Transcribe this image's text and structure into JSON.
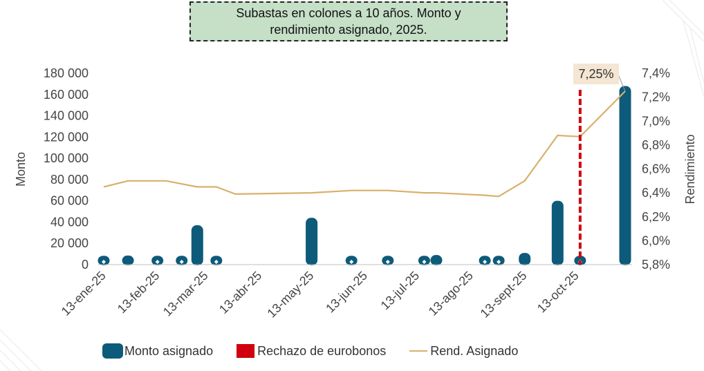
{
  "title": {
    "line1": "Subastas en colones a 10 años. Monto y",
    "line2": "rendimiento asignado, 2025."
  },
  "chart_data": {
    "type": "bar",
    "title": "Subastas en colones a 10 años. Monto y rendimiento asignado, 2025.",
    "ylabel": "Monto",
    "y2label": "Rendimiento",
    "ylim": [
      0,
      180000
    ],
    "y2lim": [
      5.8,
      7.4
    ],
    "yticks": [
      "0",
      "20 000",
      "40 000",
      "60 000",
      "80 000",
      "100 000",
      "120 000",
      "140 000",
      "160 000",
      "180 000"
    ],
    "y2ticks": [
      "5,8%",
      "6,0%",
      "6,2%",
      "6,4%",
      "6,6%",
      "6,8%",
      "7,0%",
      "7,2%",
      "7,4%"
    ],
    "xticks": [
      "13-ene-25",
      "13-feb-25",
      "13-mar-25",
      "13-abr-25",
      "13-may-25",
      "13-jun-25",
      "13-jul-25",
      "13-ago-25",
      "13-sept-25",
      "13-oct-25"
    ],
    "series": [
      {
        "name": "Monto asignado",
        "kind": "bar",
        "color": "#0d5a7a",
        "points": [
          {
            "date": "2025-01-13",
            "value": 2500
          },
          {
            "date": "2025-01-27",
            "value": 8500
          },
          {
            "date": "2025-02-13",
            "value": 2500
          },
          {
            "date": "2025-02-27",
            "value": 4000
          },
          {
            "date": "2025-03-08",
            "value": 37000
          },
          {
            "date": "2025-03-19",
            "value": 3000
          },
          {
            "date": "2025-05-13",
            "value": 44000
          },
          {
            "date": "2025-06-05",
            "value": 4000
          },
          {
            "date": "2025-06-26",
            "value": 2000
          },
          {
            "date": "2025-07-17",
            "value": 2000
          },
          {
            "date": "2025-07-24",
            "value": 9000
          },
          {
            "date": "2025-08-21",
            "value": 2000
          },
          {
            "date": "2025-08-29",
            "value": 2000
          },
          {
            "date": "2025-09-13",
            "value": 11000
          },
          {
            "date": "2025-10-02",
            "value": 60000
          },
          {
            "date": "2025-10-15",
            "value": 3500
          },
          {
            "date": "2025-11-10",
            "value": 168000
          }
        ]
      },
      {
        "name": "Rend. Asignado",
        "kind": "line",
        "color": "#d8b06c",
        "points": [
          {
            "date": "2025-01-13",
            "value": 6.45
          },
          {
            "date": "2025-01-27",
            "value": 6.5
          },
          {
            "date": "2025-02-18",
            "value": 6.5
          },
          {
            "date": "2025-03-08",
            "value": 6.45
          },
          {
            "date": "2025-03-19",
            "value": 6.45
          },
          {
            "date": "2025-03-30",
            "value": 6.39
          },
          {
            "date": "2025-05-13",
            "value": 6.4
          },
          {
            "date": "2025-06-05",
            "value": 6.42
          },
          {
            "date": "2025-06-26",
            "value": 6.42
          },
          {
            "date": "2025-07-17",
            "value": 6.4
          },
          {
            "date": "2025-07-24",
            "value": 6.4
          },
          {
            "date": "2025-08-21",
            "value": 6.38
          },
          {
            "date": "2025-08-29",
            "value": 6.37
          },
          {
            "date": "2025-09-13",
            "value": 6.5
          },
          {
            "date": "2025-10-02",
            "value": 6.88
          },
          {
            "date": "2025-10-15",
            "value": 6.87
          },
          {
            "date": "2025-11-10",
            "value": 7.25
          }
        ]
      },
      {
        "name": "Rechazo de eurobonos",
        "kind": "vline",
        "color": "#d0000f",
        "date": "2025-10-15"
      }
    ],
    "annotations": [
      {
        "text": "7,25%",
        "date": "2025-11-10",
        "value": 7.25
      }
    ],
    "legend_position": "bottom",
    "grid": false
  },
  "legend": {
    "bar_label": "Monto asignado",
    "vline_label": "Rechazo de eurobonos",
    "line_label": "Rend. Asignado"
  }
}
